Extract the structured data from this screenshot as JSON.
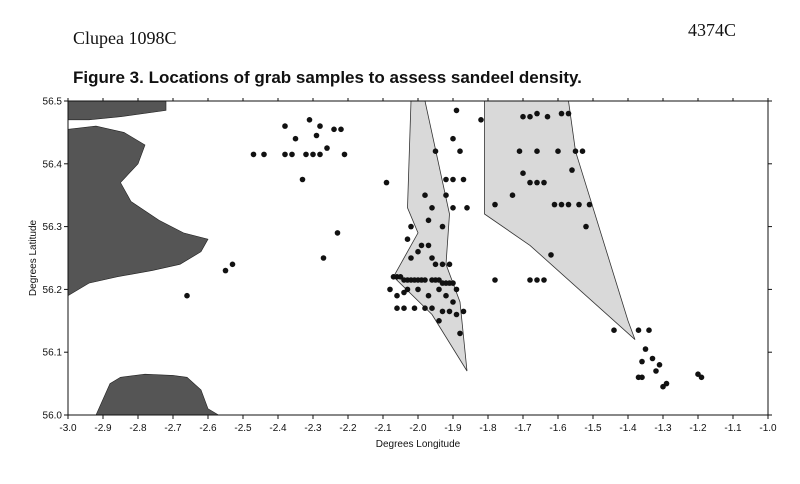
{
  "header": {
    "left": "Clupea 1098C",
    "right": "4374C"
  },
  "chart_data": {
    "type": "scatter",
    "title": "Figure 3. Locations of grab samples to assess sandeel density.",
    "xlabel": "Degrees Longitude",
    "ylabel": "Degrees Latitude",
    "xlim": [
      -3.0,
      -1.0
    ],
    "ylim": [
      56.0,
      56.5
    ],
    "xticks": [
      "-3.0",
      "-2.9",
      "-2.8",
      "-2.7",
      "-2.6",
      "-2.5",
      "-2.4",
      "-2.3",
      "-2.2",
      "-2.1",
      "-2.0",
      "-1.9",
      "-1.8",
      "-1.7",
      "-1.6",
      "-1.5",
      "-1.4",
      "-1.3",
      "-1.2",
      "-1.1",
      "-1.0"
    ],
    "yticks": [
      "56.0",
      "56.1",
      "56.2",
      "56.3",
      "56.4",
      "56.5"
    ],
    "grid": false,
    "colors": {
      "land": "#555555",
      "polygon": "#d9d9d9",
      "points": "#111111"
    },
    "land": [
      [
        [
          -3.0,
          56.5
        ],
        [
          -2.72,
          56.5
        ],
        [
          -2.72,
          56.485
        ],
        [
          -2.85,
          56.475
        ],
        [
          -2.94,
          56.47
        ],
        [
          -3.0,
          56.47
        ]
      ],
      [
        [
          -3.0,
          56.455
        ],
        [
          -2.92,
          56.46
        ],
        [
          -2.84,
          56.45
        ],
        [
          -2.78,
          56.43
        ],
        [
          -2.8,
          56.4
        ],
        [
          -2.85,
          56.37
        ],
        [
          -2.82,
          56.34
        ],
        [
          -2.74,
          56.31
        ],
        [
          -2.67,
          56.29
        ],
        [
          -2.6,
          56.28
        ],
        [
          -2.62,
          56.26
        ],
        [
          -2.68,
          56.24
        ],
        [
          -2.76,
          56.23
        ],
        [
          -2.86,
          56.22
        ],
        [
          -2.94,
          56.21
        ],
        [
          -3.0,
          56.19
        ]
      ],
      [
        [
          -2.92,
          56.0
        ],
        [
          -2.88,
          56.05
        ],
        [
          -2.85,
          56.06
        ],
        [
          -2.78,
          56.065
        ],
        [
          -2.7,
          56.063
        ],
        [
          -2.66,
          56.06
        ],
        [
          -2.62,
          56.04
        ],
        [
          -2.6,
          56.01
        ],
        [
          -2.57,
          56.0
        ]
      ]
    ],
    "polygons": [
      [
        [
          -2.02,
          56.5
        ],
        [
          -1.98,
          56.5
        ],
        [
          -1.91,
          56.32
        ],
        [
          -1.92,
          56.24
        ],
        [
          -1.88,
          56.18
        ],
        [
          -1.86,
          56.07
        ],
        [
          -1.96,
          56.16
        ],
        [
          -2.07,
          56.22
        ],
        [
          -2.0,
          56.29
        ],
        [
          -2.03,
          56.33
        ]
      ],
      [
        [
          -1.81,
          56.5
        ],
        [
          -1.57,
          56.5
        ],
        [
          -1.55,
          56.42
        ],
        [
          -1.4,
          56.15
        ],
        [
          -1.38,
          56.12
        ],
        [
          -1.68,
          56.27
        ],
        [
          -1.81,
          56.32
        ]
      ]
    ],
    "points": [
      [
        -2.66,
        56.19
      ],
      [
        -2.55,
        56.23
      ],
      [
        -2.53,
        56.24
      ],
      [
        -2.47,
        56.415
      ],
      [
        -2.44,
        56.415
      ],
      [
        -2.38,
        56.415
      ],
      [
        -2.36,
        56.415
      ],
      [
        -2.35,
        56.44
      ],
      [
        -2.33,
        56.375
      ],
      [
        -2.32,
        56.415
      ],
      [
        -2.3,
        56.415
      ],
      [
        -2.29,
        56.445
      ],
      [
        -2.28,
        56.415
      ],
      [
        -2.26,
        56.425
      ],
      [
        -2.24,
        56.455
      ],
      [
        -2.23,
        56.29
      ],
      [
        -2.22,
        56.455
      ],
      [
        -2.21,
        56.415
      ],
      [
        -2.27,
        56.25
      ],
      [
        -2.38,
        56.46
      ],
      [
        -2.31,
        56.47
      ],
      [
        -2.28,
        56.46
      ],
      [
        -2.09,
        56.37
      ],
      [
        -2.07,
        56.22
      ],
      [
        -2.06,
        56.22
      ],
      [
        -2.05,
        56.22
      ],
      [
        -2.04,
        56.215
      ],
      [
        -2.03,
        56.215
      ],
      [
        -2.02,
        56.215
      ],
      [
        -2.01,
        56.215
      ],
      [
        -2.0,
        56.215
      ],
      [
        -1.99,
        56.215
      ],
      [
        -1.98,
        56.215
      ],
      [
        -1.96,
        56.215
      ],
      [
        -1.95,
        56.215
      ],
      [
        -1.94,
        56.215
      ],
      [
        -1.93,
        56.21
      ],
      [
        -1.92,
        56.21
      ],
      [
        -1.91,
        56.21
      ],
      [
        -1.9,
        56.21
      ],
      [
        -2.08,
        56.2
      ],
      [
        -2.06,
        56.19
      ],
      [
        -2.04,
        56.195
      ],
      [
        -2.03,
        56.2
      ],
      [
        -2.0,
        56.2
      ],
      [
        -1.97,
        56.19
      ],
      [
        -1.94,
        56.2
      ],
      [
        -1.92,
        56.19
      ],
      [
        -1.9,
        56.18
      ],
      [
        -1.89,
        56.2
      ],
      [
        -2.02,
        56.25
      ],
      [
        -2.0,
        56.26
      ],
      [
        -1.99,
        56.27
      ],
      [
        -1.97,
        56.27
      ],
      [
        -1.96,
        56.25
      ],
      [
        -1.95,
        56.24
      ],
      [
        -1.93,
        56.24
      ],
      [
        -1.91,
        56.24
      ],
      [
        -2.03,
        56.28
      ],
      [
        -2.02,
        56.3
      ],
      [
        -1.97,
        56.31
      ],
      [
        -1.93,
        56.3
      ],
      [
        -1.98,
        56.35
      ],
      [
        -1.96,
        56.33
      ],
      [
        -2.06,
        56.17
      ],
      [
        -2.04,
        56.17
      ],
      [
        -2.01,
        56.17
      ],
      [
        -1.98,
        56.17
      ],
      [
        -1.96,
        56.17
      ],
      [
        -1.93,
        56.165
      ],
      [
        -1.91,
        56.165
      ],
      [
        -1.89,
        56.16
      ],
      [
        -1.87,
        56.165
      ],
      [
        -1.88,
        56.13
      ],
      [
        -1.94,
        56.15
      ],
      [
        -1.92,
        56.375
      ],
      [
        -1.9,
        56.375
      ],
      [
        -1.87,
        56.375
      ],
      [
        -1.9,
        56.44
      ],
      [
        -1.88,
        56.42
      ],
      [
        -1.95,
        56.42
      ],
      [
        -1.89,
        56.485
      ],
      [
        -1.82,
        56.47
      ],
      [
        -1.86,
        56.33
      ],
      [
        -1.9,
        56.33
      ],
      [
        -1.92,
        56.35
      ],
      [
        -1.78,
        56.215
      ],
      [
        -1.68,
        56.215
      ],
      [
        -1.66,
        56.215
      ],
      [
        -1.64,
        56.215
      ],
      [
        -1.62,
        56.255
      ],
      [
        -1.7,
        56.475
      ],
      [
        -1.68,
        56.475
      ],
      [
        -1.66,
        56.48
      ],
      [
        -1.63,
        56.475
      ],
      [
        -1.59,
        56.48
      ],
      [
        -1.57,
        56.48
      ],
      [
        -1.71,
        56.42
      ],
      [
        -1.66,
        56.42
      ],
      [
        -1.6,
        56.42
      ],
      [
        -1.55,
        56.42
      ],
      [
        -1.53,
        56.42
      ],
      [
        -1.56,
        56.39
      ],
      [
        -1.7,
        56.385
      ],
      [
        -1.68,
        56.37
      ],
      [
        -1.66,
        56.37
      ],
      [
        -1.64,
        56.37
      ],
      [
        -1.73,
        56.35
      ],
      [
        -1.61,
        56.335
      ],
      [
        -1.59,
        56.335
      ],
      [
        -1.57,
        56.335
      ],
      [
        -1.54,
        56.335
      ],
      [
        -1.51,
        56.335
      ],
      [
        -1.52,
        56.3
      ],
      [
        -1.78,
        56.335
      ],
      [
        -1.44,
        56.135
      ],
      [
        -1.37,
        56.135
      ],
      [
        -1.34,
        56.135
      ],
      [
        -1.35,
        56.105
      ],
      [
        -1.33,
        56.09
      ],
      [
        -1.31,
        56.08
      ],
      [
        -1.36,
        56.085
      ],
      [
        -1.37,
        56.06
      ],
      [
        -1.36,
        56.06
      ],
      [
        -1.32,
        56.07
      ],
      [
        -1.29,
        56.05
      ],
      [
        -1.3,
        56.045
      ],
      [
        -1.2,
        56.065
      ],
      [
        -1.19,
        56.06
      ]
    ]
  }
}
